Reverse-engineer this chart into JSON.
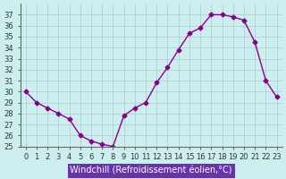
{
  "x": [
    0,
    1,
    2,
    3,
    4,
    5,
    6,
    7,
    8,
    9,
    10,
    11,
    12,
    13,
    14,
    15,
    16,
    17,
    18,
    19,
    20,
    21,
    22,
    23
  ],
  "y": [
    30,
    29,
    28.5,
    28,
    27.5,
    26,
    25.5,
    25.2,
    25,
    27.8,
    28.5,
    29,
    30.8,
    32.2,
    33.8,
    35.3,
    35.8,
    37.0,
    37.0,
    36.8,
    36.5,
    34.5,
    31,
    29.5
  ],
  "line_color": "#8b008b",
  "marker": "D",
  "marker_size": 2.5,
  "bg_color": "#cceeee",
  "grid_color": "#aacccc",
  "xlabel": "Windchill (Refroidissement éolien,°C)",
  "xlim": [
    -0.5,
    23.5
  ],
  "ylim": [
    25,
    38
  ],
  "yticks": [
    25,
    26,
    27,
    28,
    29,
    30,
    31,
    32,
    33,
    34,
    35,
    36,
    37
  ],
  "xticks": [
    0,
    1,
    2,
    3,
    4,
    5,
    6,
    7,
    8,
    9,
    10,
    11,
    12,
    13,
    14,
    15,
    16,
    17,
    18,
    19,
    20,
    21,
    22,
    23
  ],
  "xlabel_fontsize": 7,
  "tick_fontsize": 6,
  "line_width": 1.0
}
